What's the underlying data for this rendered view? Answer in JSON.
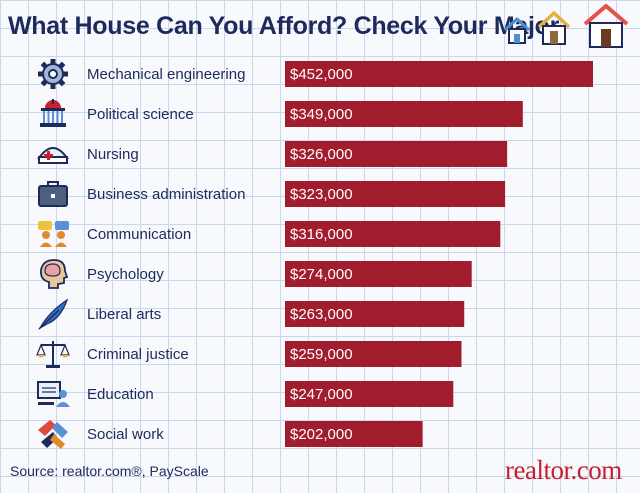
{
  "title": "What House Can You Afford? Check Your Major",
  "source": "Source: realtor.com®, PayScale",
  "brand": "realtor.com",
  "colors": {
    "bar": "#a11d2d",
    "text": "#1d2a5b",
    "brand": "#c8202f",
    "grid": "#c9d8ec"
  },
  "chart_data": {
    "type": "bar",
    "orientation": "horizontal",
    "title": "What House Can You Afford? Check Your Major",
    "xlabel": "",
    "ylabel": "",
    "grid": true,
    "xlim": [
      0,
      452000
    ],
    "categories": [
      "Mechanical engineering",
      "Political science",
      "Nursing",
      "Business administration",
      "Communication",
      "Psychology",
      "Liberal arts",
      "Criminal justice",
      "Education",
      "Social work"
    ],
    "icons": [
      "gear-icon",
      "capitol-building-icon",
      "nurse-cap-icon",
      "briefcase-icon",
      "speech-bubbles-icon",
      "brain-head-icon",
      "quill-pen-icon",
      "scales-icon",
      "computer-teacher-icon",
      "helping-hands-icon"
    ],
    "values": [
      452000,
      349000,
      326000,
      323000,
      316000,
      274000,
      263000,
      259000,
      247000,
      202000
    ],
    "value_labels": [
      "$452,000",
      "$349,000",
      "$326,000",
      "$323,000",
      "$316,000",
      "$274,000",
      "$263,000",
      "$259,000",
      "$247,000",
      "$202,000"
    ]
  }
}
